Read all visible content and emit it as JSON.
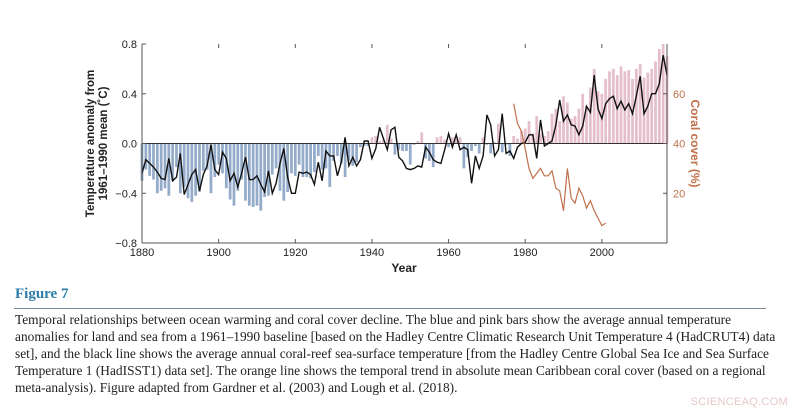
{
  "figure": {
    "label": "Figure 7",
    "caption": "Temporal relationships between ocean warming and coral cover decline. The blue and pink bars show the average annual temperature anomalies for land and sea from a 1961–1990 baseline [based on the Hadley Centre Climatic Research Unit Temperature 4 (HadCRUT4) data set], and the black line shows the average annual coral-reef sea-surface temperature [from the Hadley Centre Global Sea Ice and Sea Surface Temperature 1 (HadISST1) data set]. The orange line shows the temporal trend in absolute mean Caribbean coral cover (based on a regional meta-analysis). Figure adapted from Gardner et al. (2003) and Lough et al. (2018).",
    "watermark": "SCIENCEAQ.COM"
  },
  "chart_data": {
    "type": "bar",
    "xlabel": "Year",
    "ylabel_lines": [
      "Temperature anomaly from",
      "1961–1990 mean (˚C)"
    ],
    "y2label": "Coral cover (%)",
    "xlim": [
      1880,
      2017
    ],
    "ylim": [
      -0.8,
      0.8
    ],
    "y2lim": [
      0,
      80
    ],
    "x_ticks": [
      "1880",
      "1900",
      "1920",
      "1940",
      "1960",
      "1980",
      "2000"
    ],
    "y_ticks": [
      "0.8",
      "0.4",
      "0.0",
      "−0.4",
      "−0.8"
    ],
    "y2_ticks": [
      "60",
      "40",
      "20"
    ],
    "grid": false,
    "colors": {
      "negative_bar": "#94acca",
      "positive_bar": "#e6bfcc",
      "sst_line": "#111111",
      "coral_line": "#c0704a",
      "coral_axis": "#c0704a"
    },
    "series": [
      {
        "kind": "bars",
        "start_year": 1880,
        "values": [
          -0.3,
          -0.21,
          -0.26,
          -0.29,
          -0.4,
          -0.38,
          -0.36,
          -0.42,
          -0.3,
          -0.19,
          -0.4,
          -0.35,
          -0.44,
          -0.47,
          -0.42,
          -0.39,
          -0.22,
          -0.21,
          -0.4,
          -0.27,
          -0.17,
          -0.24,
          -0.36,
          -0.45,
          -0.5,
          -0.38,
          -0.29,
          -0.46,
          -0.5,
          -0.51,
          -0.5,
          -0.54,
          -0.43,
          -0.42,
          -0.25,
          -0.2,
          -0.38,
          -0.46,
          -0.39,
          -0.24,
          -0.26,
          -0.17,
          -0.27,
          -0.27,
          -0.28,
          -0.23,
          -0.1,
          -0.21,
          -0.2,
          -0.35,
          -0.14,
          -0.1,
          -0.16,
          -0.27,
          -0.14,
          -0.18,
          -0.15,
          -0.03,
          -0.02,
          -0.02,
          0.05,
          0.06,
          0.02,
          0.03,
          0.15,
          0.04,
          -0.09,
          -0.05,
          -0.06,
          -0.06,
          -0.17,
          -0.01,
          0.02,
          0.09,
          -0.12,
          -0.14,
          -0.19,
          0.05,
          0.06,
          0.03,
          -0.03,
          0.05,
          0.03,
          0.05,
          -0.2,
          -0.11,
          -0.06,
          -0.02,
          -0.08,
          0.05,
          -0.01,
          -0.08,
          0.01,
          0.16,
          -0.07,
          -0.01,
          -0.1,
          0.06,
          0.04,
          0.1,
          0.12,
          0.18,
          0.08,
          0.22,
          0.08,
          0.06,
          0.1,
          0.24,
          0.28,
          0.18,
          0.38,
          0.33,
          0.2,
          0.22,
          0.28,
          0.4,
          0.3,
          0.45,
          0.6,
          0.42,
          0.4,
          0.52,
          0.58,
          0.6,
          0.55,
          0.62,
          0.58,
          0.59,
          0.52,
          0.6,
          0.64,
          0.53,
          0.57,
          0.6,
          0.66,
          0.76,
          0.8,
          0.7
        ]
      },
      {
        "kind": "line",
        "start_year": 1880,
        "values": [
          -0.24,
          -0.13,
          -0.16,
          -0.19,
          -0.23,
          -0.28,
          -0.29,
          -0.12,
          -0.3,
          -0.27,
          -0.08,
          -0.41,
          -0.33,
          -0.25,
          -0.21,
          -0.38,
          -0.25,
          -0.18,
          -0.01,
          -0.21,
          -0.25,
          -0.07,
          -0.12,
          -0.3,
          -0.24,
          -0.35,
          -0.24,
          -0.11,
          -0.29,
          -0.29,
          -0.26,
          -0.33,
          -0.39,
          -0.22,
          -0.4,
          -0.32,
          -0.16,
          -0.04,
          -0.27,
          -0.4,
          -0.4,
          -0.23,
          -0.24,
          -0.23,
          -0.25,
          -0.33,
          -0.15,
          -0.3,
          -0.06,
          -0.1,
          -0.1,
          -0.26,
          -0.15,
          0.05,
          -0.18,
          -0.11,
          -0.18,
          -0.13,
          0.02,
          0.02,
          -0.12,
          -0.04,
          0.13,
          0.04,
          -0.05,
          0.11,
          0.13,
          -0.11,
          -0.14,
          -0.2,
          -0.21,
          -0.2,
          -0.18,
          -0.19,
          -0.03,
          -0.07,
          -0.13,
          -0.15,
          -0.16,
          -0.05,
          0.08,
          -0.03,
          0.07,
          -0.05,
          -0.03,
          -0.05,
          -0.32,
          -0.1,
          -0.2,
          -0.1,
          0.23,
          0.15,
          -0.1,
          -0.05,
          0.24,
          -0.08,
          -0.06,
          -0.12,
          -0.03,
          0.0,
          0.01,
          0.07,
          0.07,
          -0.12,
          0.19,
          -0.02,
          0.0,
          0.02,
          0.15,
          0.35,
          0.18,
          0.23,
          0.15,
          0.14,
          0.07,
          0.14,
          0.3,
          0.25,
          0.55,
          0.28,
          0.2,
          0.32,
          0.36,
          0.38,
          0.28,
          0.34,
          0.27,
          0.32,
          0.24,
          0.38,
          0.54,
          0.24,
          0.3,
          0.4,
          0.4,
          0.48,
          0.71,
          0.55
        ]
      },
      {
        "kind": "line",
        "axis": "right",
        "start_year": 1977,
        "values": [
          56,
          48,
          45,
          38,
          30,
          26,
          28,
          30,
          27,
          27,
          29,
          22,
          21,
          13,
          30,
          18,
          16,
          22,
          19,
          14,
          17,
          13,
          10,
          7,
          8
        ]
      }
    ]
  }
}
